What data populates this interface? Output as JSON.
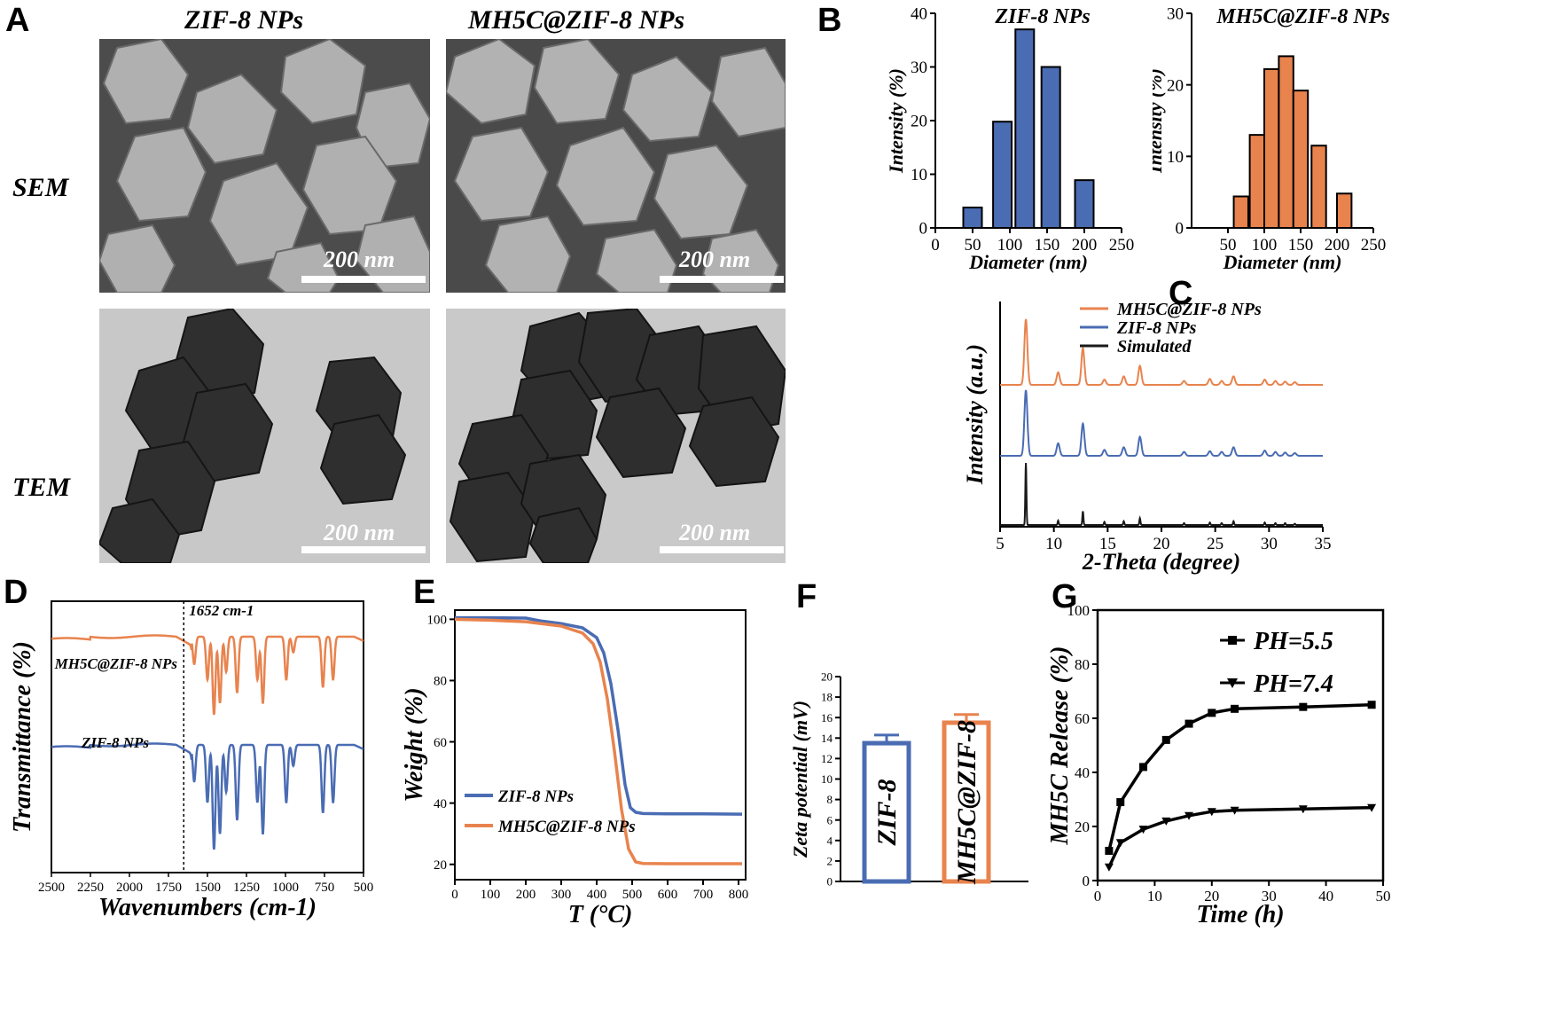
{
  "panels": {
    "A": "A",
    "B": "B",
    "C": "C",
    "D": "D",
    "E": "E",
    "F": "F",
    "G": "G"
  },
  "panel_a": {
    "col_titles": [
      "ZIF-8 NPs",
      "MH5C@ZIF-8 NPs"
    ],
    "row_titles": [
      "SEM",
      "TEM"
    ],
    "scale_label": "200 nm"
  },
  "colors": {
    "blue": "#4a6cb3",
    "orange": "#e8834e",
    "black": "#1a1a1a"
  },
  "chart_data": [
    {
      "id": "B1",
      "type": "bar",
      "title": "ZIF-8 NPs",
      "xlabel": "Diameter (nm)",
      "ylabel": "Intensity (%)",
      "x": [
        50,
        90,
        120,
        155,
        200
      ],
      "bar_width": 25,
      "values": [
        3.8,
        19.8,
        37.0,
        30.0,
        8.9
      ],
      "xlim": [
        0,
        250
      ],
      "ylim": [
        0,
        40
      ],
      "xticks": [
        0,
        50,
        100,
        150,
        200,
        250
      ],
      "yticks": [
        0,
        10,
        20,
        30,
        40
      ],
      "color": "#4a6cb3"
    },
    {
      "id": "B2",
      "type": "bar",
      "title": "MH5C@ZIF-8 NPs",
      "xlabel": "Diameter (nm)",
      "ylabel": "Intensity (%)",
      "x": [
        68,
        90,
        110,
        130,
        150,
        175,
        210
      ],
      "bar_width": 20,
      "values": [
        4.4,
        13.0,
        22.2,
        24.0,
        19.2,
        11.5,
        4.8
      ],
      "xlim": [
        0,
        250
      ],
      "ylim": [
        0,
        30
      ],
      "xticks": [
        50,
        100,
        150,
        200,
        250
      ],
      "yticks": [
        0,
        10,
        20,
        30
      ],
      "color": "#e8834e"
    },
    {
      "id": "C",
      "type": "line",
      "xlabel": "2-Theta (degree)",
      "ylabel": "Intensity (a.u.)",
      "xlim": [
        5,
        35
      ],
      "xticks": [
        5,
        10,
        15,
        20,
        25,
        30,
        35
      ],
      "peaks_x": [
        7.4,
        10.4,
        12.7,
        14.7,
        16.5,
        18.0,
        22.1,
        24.5,
        25.6,
        26.7,
        29.6,
        30.6,
        31.5,
        32.4
      ],
      "series": [
        {
          "name": "MH5C@ZIF-8 NPs",
          "color": "#e8834e",
          "heights": [
            1.0,
            0.19,
            0.56,
            0.08,
            0.13,
            0.29,
            0.06,
            0.09,
            0.06,
            0.13,
            0.08,
            0.06,
            0.05,
            0.04
          ]
        },
        {
          "name": "ZIF-8 NPs",
          "color": "#4a6cb3",
          "heights": [
            1.0,
            0.19,
            0.49,
            0.09,
            0.13,
            0.29,
            0.06,
            0.07,
            0.06,
            0.13,
            0.08,
            0.06,
            0.05,
            0.04
          ]
        },
        {
          "name": "Simulated",
          "color": "#1a1a1a",
          "heights": [
            1.0,
            0.07,
            0.22,
            0.05,
            0.06,
            0.11,
            0.03,
            0.04,
            0.03,
            0.06,
            0.04,
            0.03,
            0.03,
            0.02
          ]
        }
      ]
    },
    {
      "id": "D",
      "type": "line",
      "xlabel": "Wavenumbers (cm-1)",
      "ylabel": "Transmittance (%)",
      "xlim": [
        2500,
        500
      ],
      "xticks": [
        2500,
        2250,
        2000,
        1750,
        1500,
        1250,
        1000,
        750,
        500
      ],
      "annotation": "1652 cm-1",
      "annotation_x": 1652,
      "series": [
        {
          "name": "MH5C@ZIF-8 NPs",
          "color": "#e8834e"
        },
        {
          "name": "ZIF-8 NPs",
          "color": "#4a6cb3"
        }
      ],
      "dips": [
        {
          "x": 1585,
          "d": 0.35
        },
        {
          "x": 1500,
          "d": 0.55
        },
        {
          "x": 1458,
          "d": 1.0
        },
        {
          "x": 1420,
          "d": 0.85
        },
        {
          "x": 1380,
          "d": 0.45
        },
        {
          "x": 1310,
          "d": 0.72
        },
        {
          "x": 1180,
          "d": 0.55
        },
        {
          "x": 1145,
          "d": 0.85
        },
        {
          "x": 995,
          "d": 0.55
        },
        {
          "x": 950,
          "d": 0.2
        },
        {
          "x": 760,
          "d": 0.65
        },
        {
          "x": 695,
          "d": 0.55
        }
      ]
    },
    {
      "id": "E",
      "type": "line",
      "xlabel": "T (°C)",
      "ylabel": "Weight (%)",
      "xlim": [
        0,
        820
      ],
      "ylim": [
        15,
        103
      ],
      "xticks": [
        0,
        100,
        200,
        300,
        400,
        500,
        600,
        700,
        800
      ],
      "yticks": [
        20,
        40,
        60,
        80,
        100
      ],
      "series": [
        {
          "name": "ZIF-8 NPs",
          "color": "#4a6cb3",
          "x": [
            0,
            100,
            200,
            240,
            300,
            360,
            400,
            420,
            440,
            460,
            480,
            495,
            510,
            530,
            600,
            700,
            810
          ],
          "y": [
            100.5,
            100.5,
            100.4,
            99.5,
            98.6,
            97.2,
            94.0,
            89.0,
            79.0,
            64.0,
            46.0,
            38.5,
            37.0,
            36.6,
            36.5,
            36.5,
            36.4
          ]
        },
        {
          "name": "MH5C@ZIF-8 NPs",
          "color": "#e8834e",
          "x": [
            0,
            100,
            200,
            300,
            360,
            390,
            410,
            430,
            450,
            470,
            490,
            510,
            530,
            600,
            700,
            810
          ],
          "y": [
            100.0,
            99.7,
            99.2,
            97.8,
            95.5,
            92.0,
            86.0,
            74.0,
            57.0,
            38.0,
            25.0,
            20.8,
            20.3,
            20.2,
            20.2,
            20.2
          ]
        }
      ]
    },
    {
      "id": "F",
      "type": "bar",
      "xlabel": "",
      "ylabel": "Zeta potential (mV)",
      "categories": [
        "ZIF-8",
        "MH5C@ZIF-8"
      ],
      "values": [
        13.5,
        15.5
      ],
      "errors": [
        0.8,
        0.8
      ],
      "colors": [
        "#4a6cb3",
        "#e8834e"
      ],
      "ylim": [
        0,
        20
      ],
      "yticks": [
        0,
        2,
        4,
        6,
        8,
        10,
        12,
        14,
        16,
        18,
        20
      ]
    },
    {
      "id": "G",
      "type": "line",
      "xlabel": "Time (h)",
      "ylabel": "MH5C Release (%)",
      "xlim": [
        0,
        50
      ],
      "ylim": [
        0,
        100
      ],
      "xticks": [
        0,
        10,
        20,
        30,
        40,
        50
      ],
      "yticks": [
        0,
        20,
        40,
        60,
        80,
        100
      ],
      "series": [
        {
          "name": "PH=5.5",
          "marker": "square",
          "x": [
            2,
            4,
            8,
            12,
            16,
            20,
            24,
            36,
            48
          ],
          "y": [
            11,
            29,
            42,
            52,
            58,
            62,
            63.5,
            64.2,
            65
          ]
        },
        {
          "name": "PH=7.4",
          "marker": "triangle",
          "x": [
            2,
            4,
            8,
            12,
            16,
            20,
            24,
            36,
            48
          ],
          "y": [
            5,
            14,
            19,
            22,
            24,
            25.5,
            26,
            26.5,
            27
          ]
        }
      ]
    }
  ]
}
